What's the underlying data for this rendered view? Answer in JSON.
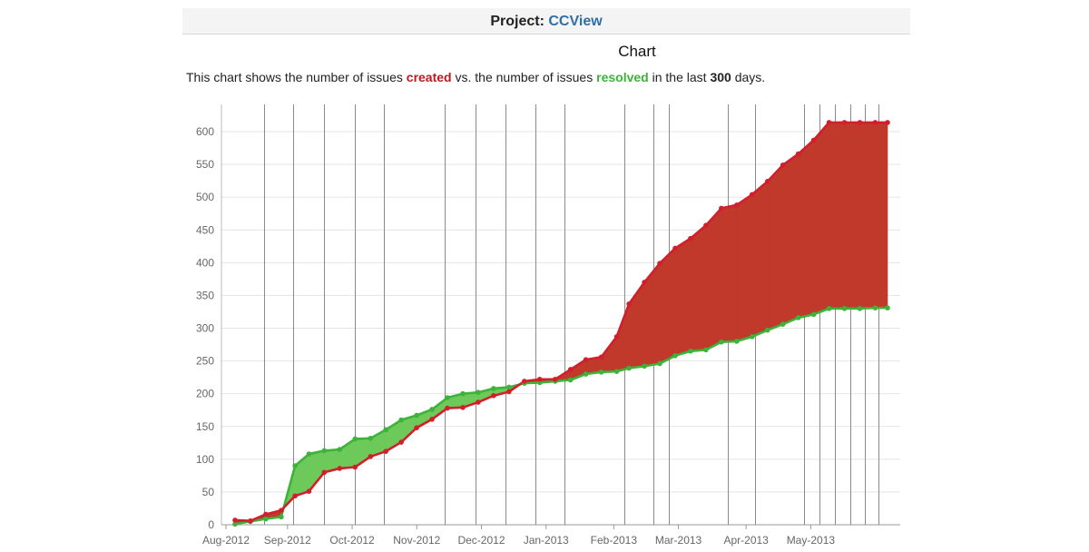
{
  "header": {
    "project_label": "Project:",
    "project_name": "CCView"
  },
  "chart_title": "Chart",
  "description": {
    "prefix": "This chart shows the number of issues",
    "created_word": "created",
    "middle": "vs. the number of issues",
    "resolved_word": "resolved",
    "suffix_before": "in the last",
    "days": "300",
    "suffix_after": "days."
  },
  "colors": {
    "created": "#d21f2c",
    "resolved": "#3db33a",
    "created_fill": "#c0392b",
    "resolved_fill": "#6cc95a",
    "gridline": "#e4e4e4",
    "vertical_line": "#8a8a8a"
  },
  "chart_data": {
    "type": "area",
    "x_unit": "days",
    "x_range": [
      0,
      223
    ],
    "ylim": [
      0,
      615
    ],
    "yticks": [
      0,
      50,
      100,
      150,
      200,
      250,
      300,
      350,
      400,
      450,
      500,
      550,
      600
    ],
    "xticks": [
      {
        "label": "Aug-2012",
        "x": 0
      },
      {
        "label": "Sep-2012",
        "x": 20
      },
      {
        "label": "Oct-2012",
        "x": 41
      },
      {
        "label": "Nov-2012",
        "x": 62
      },
      {
        "label": "Dec-2012",
        "x": 83
      },
      {
        "label": "Jan-2013",
        "x": 104
      },
      {
        "label": "Feb-2013",
        "x": 126
      },
      {
        "label": "Mar-2013",
        "x": 147
      },
      {
        "label": "Apr-2013",
        "x": 169
      },
      {
        "label": "May-2013",
        "x": 190
      }
    ],
    "vertical_markers": [
      9.5,
      19,
      29,
      39,
      48.5,
      68,
      78,
      88,
      97.5,
      107,
      126.5,
      136,
      141,
      160,
      169,
      185,
      190,
      195,
      200,
      204.5,
      209
    ],
    "grid": true,
    "legend": "none",
    "series": [
      {
        "name": "created",
        "points": [
          [
            0,
            7
          ],
          [
            5,
            6
          ],
          [
            10,
            16
          ],
          [
            15,
            22
          ],
          [
            19.5,
            44
          ],
          [
            24,
            51
          ],
          [
            29,
            80
          ],
          [
            34,
            86
          ],
          [
            39,
            88
          ],
          [
            44,
            104
          ],
          [
            49,
            112
          ],
          [
            54,
            126
          ],
          [
            59,
            148
          ],
          [
            64,
            161
          ],
          [
            69,
            178
          ],
          [
            74,
            179
          ],
          [
            79,
            187
          ],
          [
            84,
            197
          ],
          [
            89,
            203
          ],
          [
            94,
            219
          ],
          [
            99,
            222
          ],
          [
            104,
            222
          ],
          [
            109,
            237
          ],
          [
            114,
            252
          ],
          [
            119,
            256
          ],
          [
            124,
            287
          ],
          [
            128,
            337
          ],
          [
            133,
            370
          ],
          [
            138,
            399
          ],
          [
            143,
            422
          ],
          [
            148,
            437
          ],
          [
            153,
            457
          ],
          [
            158,
            483
          ],
          [
            163,
            488
          ],
          [
            168,
            504
          ],
          [
            173,
            524
          ],
          [
            178,
            549
          ],
          [
            183,
            566
          ],
          [
            188,
            587
          ],
          [
            193,
            614
          ],
          [
            198,
            614
          ],
          [
            203,
            614
          ],
          [
            208,
            614
          ],
          [
            212,
            614
          ]
        ]
      },
      {
        "name": "resolved",
        "points": [
          [
            0,
            1
          ],
          [
            5,
            5
          ],
          [
            10,
            9
          ],
          [
            15,
            12
          ],
          [
            19.5,
            90
          ],
          [
            24,
            108
          ],
          [
            29,
            113
          ],
          [
            34,
            115
          ],
          [
            39,
            131
          ],
          [
            44,
            132
          ],
          [
            49,
            145
          ],
          [
            54,
            160
          ],
          [
            59,
            167
          ],
          [
            64,
            176
          ],
          [
            69,
            194
          ],
          [
            74,
            200
          ],
          [
            79,
            202
          ],
          [
            84,
            208
          ],
          [
            89,
            210
          ],
          [
            94,
            216
          ],
          [
            99,
            217
          ],
          [
            104,
            219
          ],
          [
            109,
            221
          ],
          [
            114,
            230
          ],
          [
            119,
            233
          ],
          [
            124,
            234
          ],
          [
            128,
            239
          ],
          [
            133,
            242
          ],
          [
            138,
            246
          ],
          [
            143,
            258
          ],
          [
            148,
            265
          ],
          [
            153,
            267
          ],
          [
            158,
            279
          ],
          [
            163,
            280
          ],
          [
            168,
            287
          ],
          [
            173,
            297
          ],
          [
            178,
            306
          ],
          [
            183,
            316
          ],
          [
            188,
            321
          ],
          [
            193,
            330
          ],
          [
            198,
            330
          ],
          [
            203,
            330
          ],
          [
            208,
            331
          ],
          [
            212,
            331
          ]
        ]
      }
    ]
  }
}
